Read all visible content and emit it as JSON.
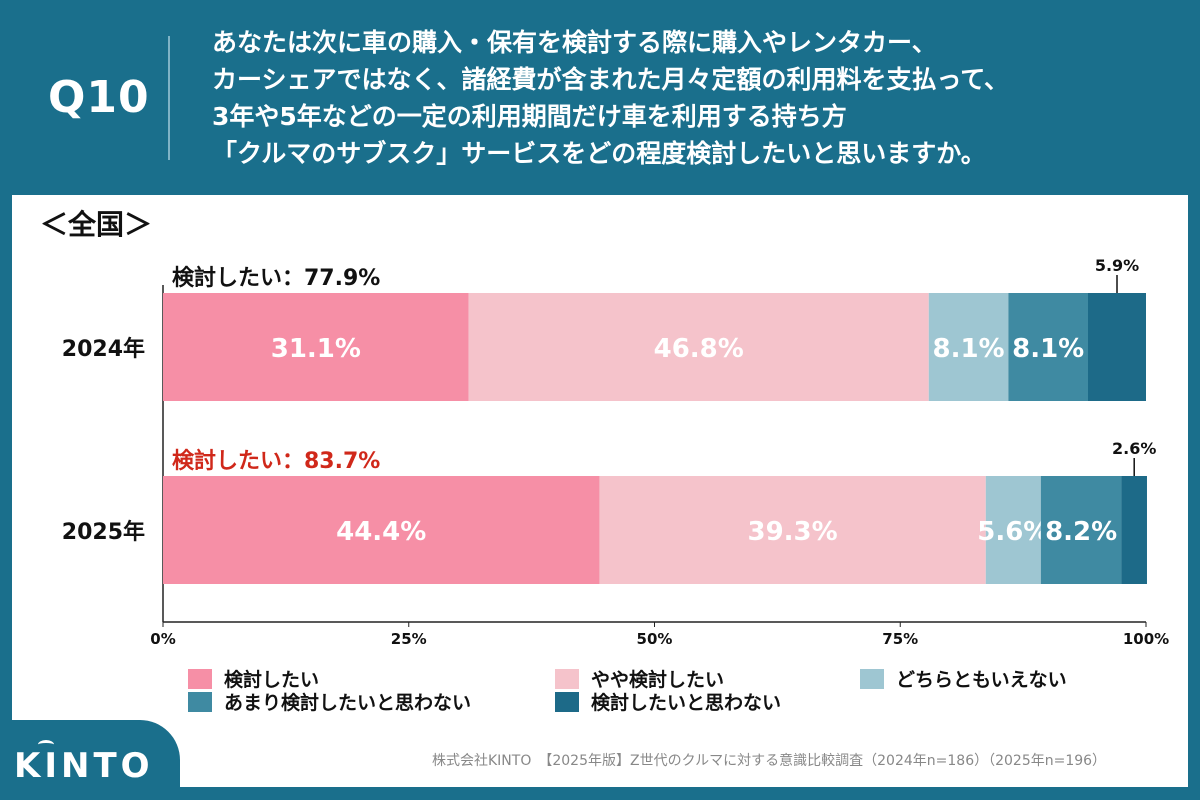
{
  "question": {
    "label": "Q10",
    "lines": [
      "あなたは次に車の購入・保有を検討する際に購入やレンタカー、",
      "カーシェアではなく、諸経費が含まれた月々定額の利用料を支払って、",
      "3年や5年などの一定の利用期間だけ車を利用する持ち方",
      "「クルマのサブスク」サービスをどの程度検討したいと思いますか。"
    ]
  },
  "region_label": "＜全国＞",
  "colors": {
    "header_bg": "#1a6f8c",
    "cat1": "#f68fa6",
    "cat2": "#f5c3cb",
    "cat3": "#9ec6d2",
    "cat4": "#3f8aa2",
    "cat5": "#1d6a88",
    "highlight": "#d0281a"
  },
  "chart_data": {
    "type": "bar",
    "orientation": "horizontal-stacked-100",
    "categories": [
      "2024年",
      "2025年"
    ],
    "series": [
      {
        "name": "検討したい",
        "values": [
          31.1,
          44.4
        ]
      },
      {
        "name": "やや検討したい",
        "values": [
          46.8,
          39.3
        ]
      },
      {
        "name": "どちらともいえない",
        "values": [
          8.1,
          5.6
        ]
      },
      {
        "name": "あまり検討したいと思わない",
        "values": [
          8.1,
          8.2
        ]
      },
      {
        "name": "検討したいと思わない",
        "values": [
          5.9,
          2.6
        ]
      }
    ],
    "value_labels": [
      [
        "31.1%",
        "46.8%",
        "8.1%",
        "8.1%",
        "5.9%"
      ],
      [
        "44.4%",
        "39.3%",
        "5.6%",
        "8.2%",
        "2.6%"
      ]
    ],
    "summary_labels": [
      "検討したい：77.9%",
      "検討したい：83.7%"
    ],
    "xticks": [
      "0%",
      "25%",
      "50%",
      "75%",
      "100%"
    ],
    "xlim": [
      0,
      100
    ]
  },
  "legend": [
    "検討したい",
    "やや検討したい",
    "どちらともいえない",
    "あまり検討したいと思わない",
    "検討したいと思わない"
  ],
  "footer": "株式会社KINTO　【2025年版】Z世代のクルマに対する意識比較調査（2024年n=186）（2025年n=196）",
  "logo_text": "KINTO"
}
